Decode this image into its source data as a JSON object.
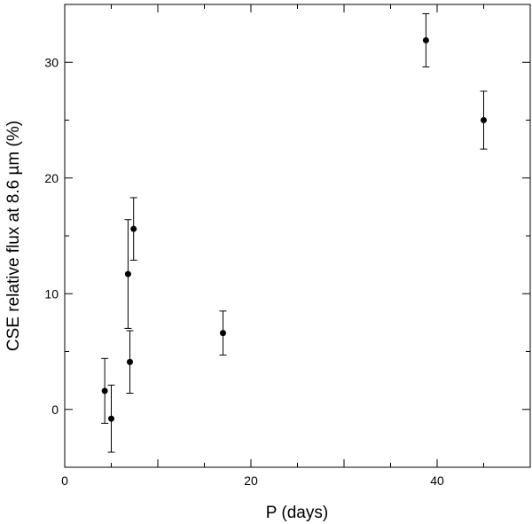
{
  "chart_data": {
    "type": "scatter",
    "title": "",
    "xlabel": "P (days)",
    "ylabel": "CSE relative flux at 8.6 µm (%)",
    "xlim": [
      0,
      50
    ],
    "ylim": [
      -5,
      35
    ],
    "grid": false,
    "legend": "none",
    "x_ticks": [
      0,
      20,
      40
    ],
    "y_ticks": [
      0,
      10,
      20,
      30
    ],
    "marker_color": "#000000",
    "series": [
      {
        "points": [
          {
            "x": 4.3,
            "y": 1.6,
            "err": 2.8
          },
          {
            "x": 5.0,
            "y": -0.8,
            "err": 2.9
          },
          {
            "x": 6.8,
            "y": 11.7,
            "err": 4.7
          },
          {
            "x": 7.0,
            "y": 4.1,
            "err": 2.7
          },
          {
            "x": 7.4,
            "y": 15.6,
            "err": 2.7
          },
          {
            "x": 17.0,
            "y": 6.6,
            "err": 1.9
          },
          {
            "x": 38.8,
            "y": 31.9,
            "err": 2.3
          },
          {
            "x": 45.0,
            "y": 25.0,
            "err": 2.5
          }
        ]
      }
    ]
  }
}
